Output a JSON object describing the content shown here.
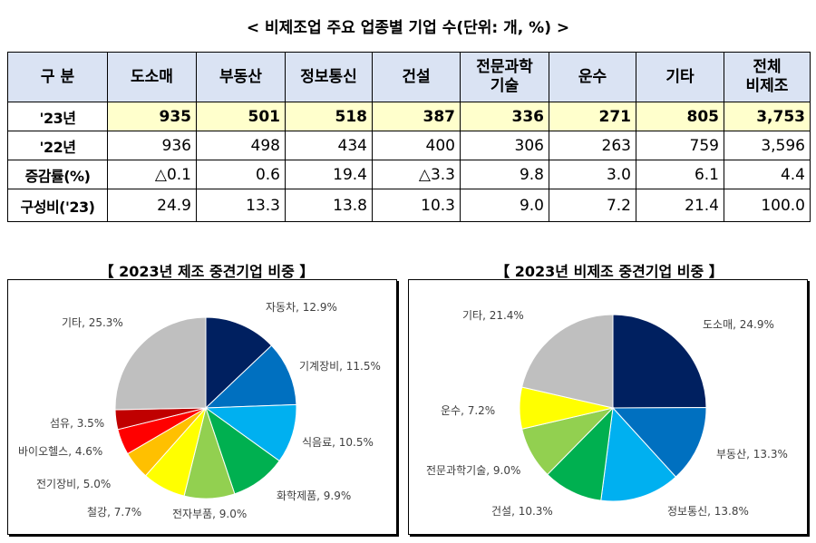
{
  "title": "< 비제조업 주요 업종별 기업 수(단위: 개, %) >",
  "table": {
    "headers": [
      "구 분",
      "도소매",
      "부동산",
      "정보통신",
      "건설",
      "전문과학\n기술",
      "운수",
      "기타",
      "전체\n비제조"
    ],
    "rows": [
      {
        "label": "'23년",
        "values": [
          "935",
          "501",
          "518",
          "387",
          "336",
          "271",
          "805",
          "3,753"
        ]
      },
      {
        "label": "'22년",
        "values": [
          "936",
          "498",
          "434",
          "400",
          "306",
          "263",
          "759",
          "3,596"
        ]
      },
      {
        "label": "증감률(%)",
        "values": [
          "△0.1",
          "0.6",
          "19.4",
          "△3.3",
          "9.8",
          "3.0",
          "6.1",
          "4.4"
        ]
      },
      {
        "label": "구성비('23)",
        "values": [
          "24.9",
          "13.3",
          "13.8",
          "10.3",
          "9.0",
          "7.2",
          "21.4",
          "100.0"
        ]
      }
    ],
    "highlight_color": "#ffffcc",
    "header_color": "#dae3f3"
  },
  "chart_data": [
    {
      "type": "pie",
      "title": "【 2023년 제조 중견기업 비중 】",
      "categories": [
        "자동차",
        "기계장비",
        "식음료",
        "화학제품",
        "전자부품",
        "철강",
        "전기장비",
        "바이오헬스",
        "섬유",
        "기타"
      ],
      "values": [
        12.9,
        11.5,
        10.5,
        9.9,
        9.0,
        7.7,
        5.0,
        4.6,
        3.5,
        25.3
      ],
      "labels": [
        "자동차, 12.9%",
        "기계장비, 11.5%",
        "식음료, 10.5%",
        "화학제품, 9.9%",
        "전자부품, 9.0%",
        "철강, 7.7%",
        "전기장비, 5.0%",
        "바이오헬스, 4.6%",
        "섬유, 3.5%",
        "기타, 25.3%"
      ],
      "colors": [
        "#002060",
        "#0070c0",
        "#00b0f0",
        "#00b050",
        "#92d050",
        "#ffff00",
        "#ffc000",
        "#ff0000",
        "#c00000",
        "#bfbfbf"
      ]
    },
    {
      "type": "pie",
      "title": "【 2023년 비제조 중견기업 비중 】",
      "categories": [
        "도소매",
        "부동산",
        "정보통신",
        "건설",
        "전문과학기술",
        "운수",
        "기타"
      ],
      "values": [
        24.9,
        13.3,
        13.8,
        10.3,
        9.0,
        7.2,
        21.4
      ],
      "labels": [
        "도소매, 24.9%",
        "부동산, 13.3%",
        "정보통신, 13.8%",
        "건설, 10.3%",
        "전문과학기술, 9.0%",
        "운수, 7.2%",
        "기타, 21.4%"
      ],
      "colors": [
        "#002060",
        "#0070c0",
        "#00b0f0",
        "#00b050",
        "#92d050",
        "#ffff00",
        "#bfbfbf"
      ]
    }
  ]
}
